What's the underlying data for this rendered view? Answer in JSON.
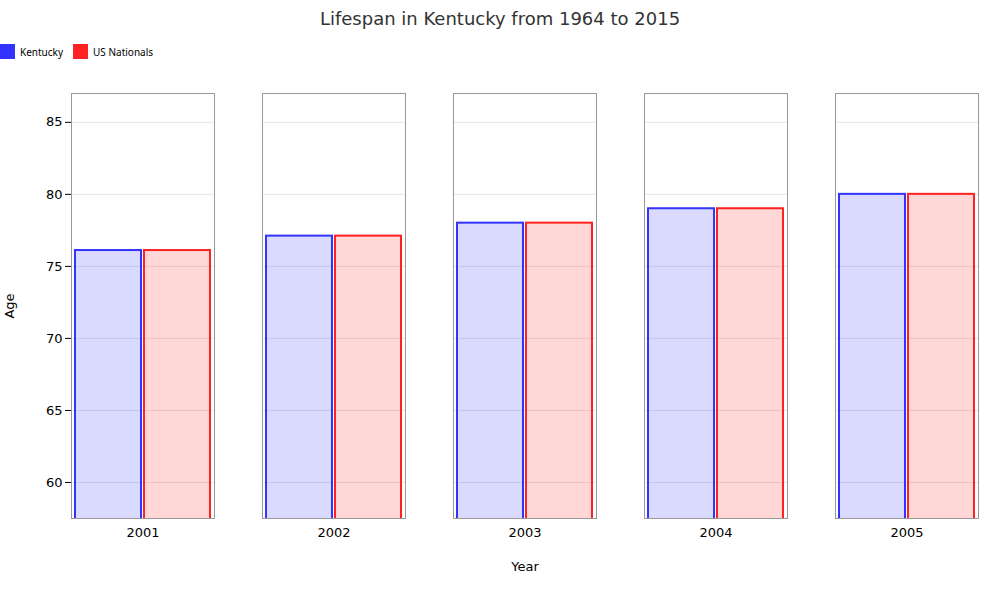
{
  "chart_data": {
    "type": "bar",
    "title": "Lifespan in Kentucky from 1964 to 2015",
    "xlabel": "Year",
    "ylabel": "Age",
    "categories": [
      "2001",
      "2002",
      "2003",
      "2004",
      "2005"
    ],
    "series": [
      {
        "name": "Kentucky",
        "color": "#3333ff",
        "values": [
          76.1,
          77.1,
          78.0,
          79.0,
          80.0
        ]
      },
      {
        "name": "US Nationals",
        "color": "#ff2222",
        "values": [
          76.1,
          77.1,
          78.0,
          79.0,
          80.0
        ]
      }
    ],
    "ylim": [
      57.5,
      87
    ],
    "yticks": [
      60,
      65,
      70,
      75,
      80,
      85
    ],
    "grid": true,
    "legend": "top"
  }
}
